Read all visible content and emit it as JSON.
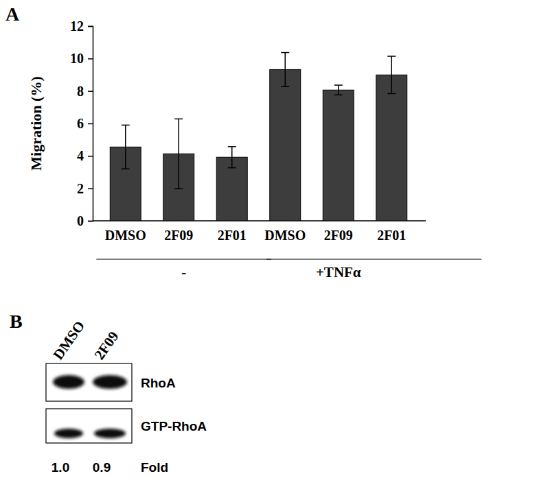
{
  "chart_data": {
    "type": "bar",
    "title": "A",
    "categories": [
      "DMSO",
      "2F09",
      "2F01",
      "DMSO",
      "2F09",
      "2F01"
    ],
    "values": [
      4.55,
      4.13,
      3.92,
      9.32,
      8.06,
      8.99
    ],
    "errors": [
      1.35,
      2.15,
      0.65,
      1.05,
      0.3,
      1.15
    ],
    "color": "#3d3d3d",
    "ylim": [
      0,
      12
    ],
    "yticks": [
      0,
      2,
      4,
      6,
      8,
      10,
      12
    ],
    "y_label": "Migration (%)",
    "group_labels": [
      "-",
      "+TNFα"
    ]
  },
  "blot": {
    "panel_label": "B",
    "lanes": [
      "DMSO",
      "2F09"
    ],
    "rows": [
      "RhoA",
      "GTP-RhoA"
    ],
    "fold": [
      "1.0",
      "0.9"
    ],
    "fold_label": "Fold"
  }
}
